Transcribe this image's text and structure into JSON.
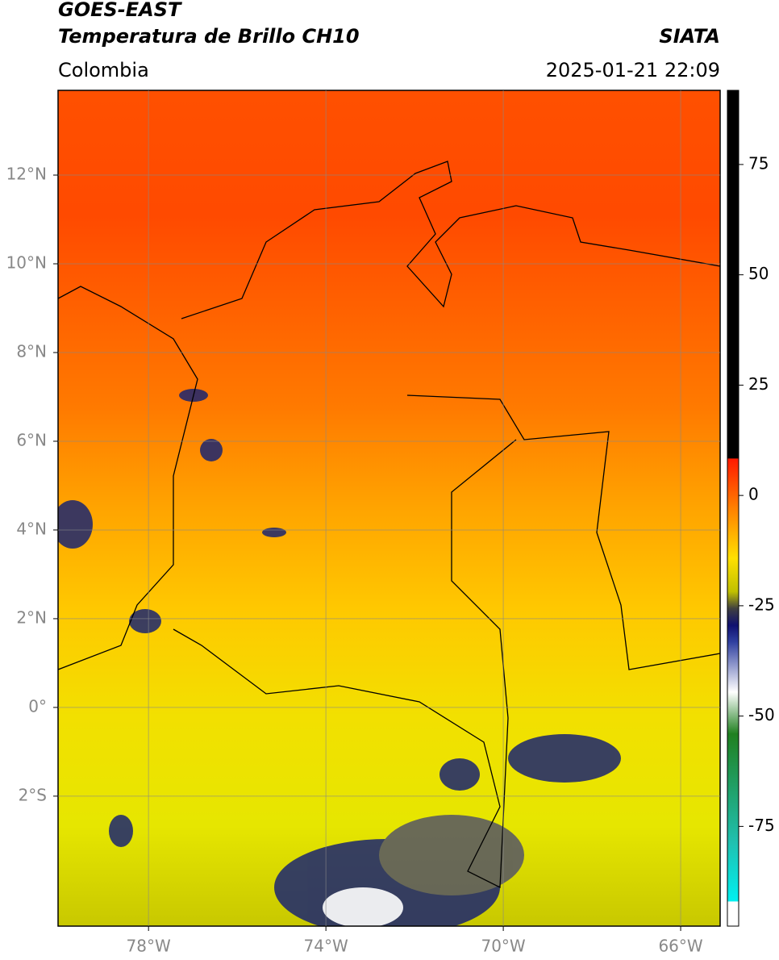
{
  "header": {
    "title": "GOES-EAST",
    "subtitle": "Temperatura de Brillo CH10",
    "source": "SIATA",
    "region": "Colombia",
    "timestamp": "2025-01-21 22:09"
  },
  "map": {
    "xlim": [
      -80.04,
      -65.11
    ],
    "ylim": [
      -4.93,
      13.91
    ],
    "xticks": [
      {
        "value": -78,
        "label": "78°W"
      },
      {
        "value": -74,
        "label": "74°W"
      },
      {
        "value": -70,
        "label": "70°W"
      },
      {
        "value": -66,
        "label": "66°W"
      }
    ],
    "yticks": [
      {
        "value": 12,
        "label": "12°N"
      },
      {
        "value": 10,
        "label": "10°N"
      },
      {
        "value": 8,
        "label": "8°N"
      },
      {
        "value": 6,
        "label": "6°N"
      },
      {
        "value": 4,
        "label": "4°N"
      },
      {
        "value": 2,
        "label": "2°N"
      },
      {
        "value": 0,
        "label": "0°"
      },
      {
        "value": -2,
        "label": "2°S"
      }
    ],
    "grid": true
  },
  "colorbar": {
    "lim": [
      -97.6,
      91.8
    ],
    "ticks": [
      75,
      50,
      25,
      0,
      -25,
      -50,
      -75
    ]
  }
}
